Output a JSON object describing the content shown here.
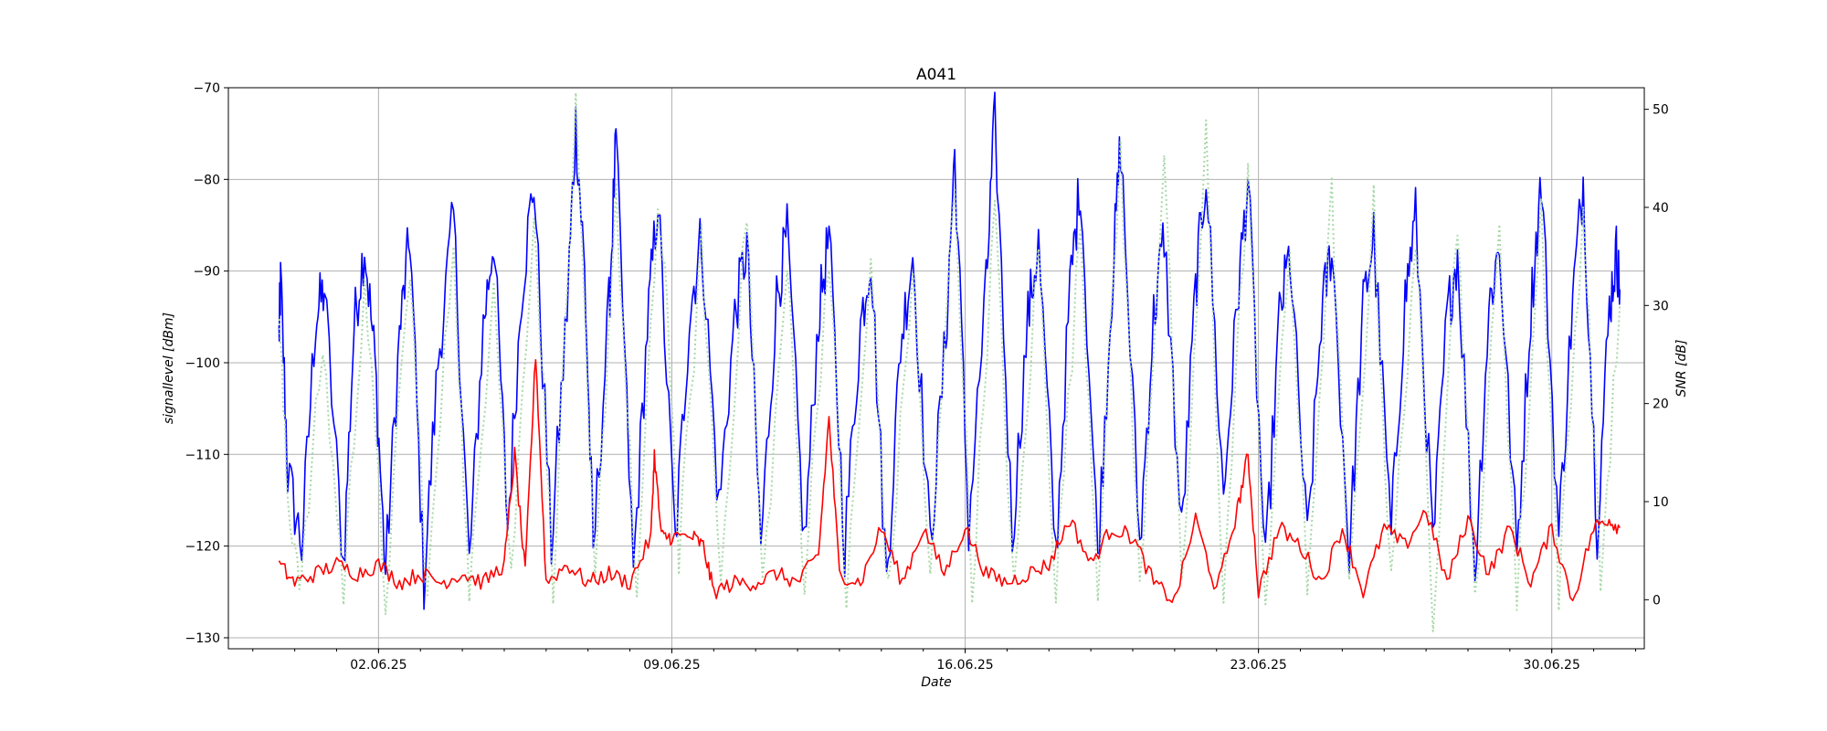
{
  "chart_data": {
    "type": "line",
    "title": "A041",
    "xlabel": "Date",
    "ylabel_left": "signallevel [dBm]",
    "ylabel_right": "SNR [dB]",
    "x_ticks": [
      "02.06.25",
      "09.06.25",
      "16.06.25",
      "23.06.25",
      "30.06.25"
    ],
    "y_left_ticks": [
      "−70",
      "−80",
      "−90",
      "−100",
      "−110",
      "−120",
      "−130"
    ],
    "y_right_ticks": [
      "50",
      "40",
      "30",
      "20",
      "10",
      "0"
    ],
    "x_range": [
      "2025-05-29T10:00",
      "2025-07-02T05:00"
    ],
    "y_left_range": [
      -131.2,
      -70
    ],
    "y_right_range": [
      -5,
      52.2
    ],
    "grid": true,
    "series": [
      {
        "axis": "left",
        "color": "#0000ff",
        "style": "solid",
        "points": [
          [
            "2025-05-30T15:00",
            -97
          ],
          [
            "2025-05-30T16:00",
            -91
          ],
          [
            "2025-05-30T20:00",
            -112
          ],
          [
            "2025-05-31T04:00",
            -120
          ],
          [
            "2025-05-31T12:00",
            -95
          ],
          [
            "2025-05-31T17:00",
            -92
          ],
          [
            "2025-06-01T04:00",
            -122
          ],
          [
            "2025-06-01T10:00",
            -96
          ],
          [
            "2025-06-01T16:00",
            -87
          ],
          [
            "2025-06-01T22:00",
            -100
          ],
          [
            "2025-06-02T04:00",
            -123
          ],
          [
            "2025-06-02T12:00",
            -97
          ],
          [
            "2025-06-02T18:00",
            -86
          ],
          [
            "2025-06-03T02:00",
            -124
          ],
          [
            "2025-06-03T10:00",
            -100
          ],
          [
            "2025-06-03T19:00",
            -84
          ],
          [
            "2025-06-04T04:00",
            -122
          ],
          [
            "2025-06-04T12:00",
            -96
          ],
          [
            "2025-06-04T18:00",
            -86
          ],
          [
            "2025-06-05T02:00",
            -118
          ],
          [
            "2025-06-05T10:00",
            -92
          ],
          [
            "2025-06-05T17:00",
            -80
          ],
          [
            "2025-06-06T03:00",
            -120
          ],
          [
            "2025-06-06T12:00",
            -94
          ],
          [
            "2025-06-06T17:00",
            -74
          ],
          [
            "2025-06-06T22:00",
            -90
          ],
          [
            "2025-06-07T03:00",
            -121
          ],
          [
            "2025-06-07T12:00",
            -94
          ],
          [
            "2025-06-07T16:00",
            -76
          ],
          [
            "2025-06-08T02:00",
            -123
          ],
          [
            "2025-06-08T10:00",
            -96
          ],
          [
            "2025-06-08T16:00",
            -82
          ],
          [
            "2025-06-09T02:00",
            -120
          ],
          [
            "2025-06-09T10:00",
            -95
          ],
          [
            "2025-06-09T17:00",
            -86
          ],
          [
            "2025-06-10T03:00",
            -116
          ],
          [
            "2025-06-10T12:00",
            -95
          ],
          [
            "2025-06-10T19:00",
            -87
          ],
          [
            "2025-06-11T03:00",
            -120
          ],
          [
            "2025-06-11T12:00",
            -93
          ],
          [
            "2025-06-11T18:00",
            -86
          ],
          [
            "2025-06-12T04:00",
            -120
          ],
          [
            "2025-06-12T12:00",
            -95
          ],
          [
            "2025-06-12T18:00",
            -86
          ],
          [
            "2025-06-13T03:00",
            -120
          ],
          [
            "2025-06-13T12:00",
            -96
          ],
          [
            "2025-06-13T18:00",
            -88
          ],
          [
            "2025-06-14T03:00",
            -124
          ],
          [
            "2025-06-14T11:00",
            -98
          ],
          [
            "2025-06-14T18:00",
            -88
          ],
          [
            "2025-06-15T04:00",
            -120
          ],
          [
            "2025-06-15T13:00",
            -97
          ],
          [
            "2025-06-15T18:00",
            -77
          ],
          [
            "2025-06-16T02:00",
            -118
          ],
          [
            "2025-06-16T12:00",
            -92
          ],
          [
            "2025-06-16T17:00",
            -73
          ],
          [
            "2025-06-17T03:00",
            -119
          ],
          [
            "2025-06-17T12:00",
            -95
          ],
          [
            "2025-06-17T18:00",
            -87
          ],
          [
            "2025-06-18T04:00",
            -121
          ],
          [
            "2025-06-18T12:00",
            -92
          ],
          [
            "2025-06-18T18:00",
            -80
          ],
          [
            "2025-06-19T04:00",
            -121
          ],
          [
            "2025-06-19T12:00",
            -92
          ],
          [
            "2025-06-19T17:00",
            -76
          ],
          [
            "2025-06-20T04:00",
            -120
          ],
          [
            "2025-06-20T12:00",
            -95
          ],
          [
            "2025-06-20T18:00",
            -86
          ],
          [
            "2025-06-21T04:00",
            -119
          ],
          [
            "2025-06-21T12:00",
            -92
          ],
          [
            "2025-06-21T18:00",
            -79
          ],
          [
            "2025-06-22T04:00",
            -115
          ],
          [
            "2025-06-22T12:00",
            -93
          ],
          [
            "2025-06-22T18:00",
            -80
          ],
          [
            "2025-06-23T04:00",
            -123
          ],
          [
            "2025-06-23T12:00",
            -95
          ],
          [
            "2025-06-23T18:00",
            -88
          ],
          [
            "2025-06-24T04:00",
            -120
          ],
          [
            "2025-06-24T12:00",
            -95
          ],
          [
            "2025-06-24T18:00",
            -87
          ],
          [
            "2025-06-25T04:00",
            -121
          ],
          [
            "2025-06-25T12:00",
            -94
          ],
          [
            "2025-06-25T18:00",
            -86
          ],
          [
            "2025-06-26T04:00",
            -119
          ],
          [
            "2025-06-26T12:00",
            -93
          ],
          [
            "2025-06-26T18:00",
            -84
          ],
          [
            "2025-06-27T04:00",
            -120
          ],
          [
            "2025-06-27T12:00",
            -95
          ],
          [
            "2025-06-27T18:00",
            -88
          ],
          [
            "2025-06-28T04:00",
            -123
          ],
          [
            "2025-06-28T12:00",
            -94
          ],
          [
            "2025-06-28T18:00",
            -87
          ],
          [
            "2025-06-29T04:00",
            -121
          ],
          [
            "2025-06-29T12:00",
            -94
          ],
          [
            "2025-06-29T18:00",
            -80
          ],
          [
            "2025-06-30T04:00",
            -119
          ],
          [
            "2025-06-30T12:00",
            -93
          ],
          [
            "2025-06-30T18:00",
            -80
          ],
          [
            "2025-07-01T02:00",
            -118
          ],
          [
            "2025-07-01T09:00",
            -94
          ],
          [
            "2025-07-01T13:00",
            -88
          ],
          [
            "2025-07-01T15:00",
            -92
          ]
        ]
      },
      {
        "axis": "right",
        "color": "#a8d8a8",
        "style": "dotted",
        "points": [
          [
            "2025-05-30T15:00",
            29
          ],
          [
            "2025-05-30T20:00",
            10
          ],
          [
            "2025-05-31T04:00",
            2
          ],
          [
            "2025-05-31T16:00",
            26
          ],
          [
            "2025-06-01T04:00",
            1
          ],
          [
            "2025-06-01T16:00",
            33
          ],
          [
            "2025-06-02T04:00",
            0
          ],
          [
            "2025-06-02T18:00",
            34
          ],
          [
            "2025-06-03T04:00",
            0
          ],
          [
            "2025-06-03T19:00",
            37
          ],
          [
            "2025-06-04T04:00",
            -1
          ],
          [
            "2025-06-04T18:00",
            34
          ],
          [
            "2025-06-05T04:00",
            2
          ],
          [
            "2025-06-05T17:00",
            40
          ],
          [
            "2025-06-06T04:00",
            2
          ],
          [
            "2025-06-06T17:00",
            50
          ],
          [
            "2025-06-07T04:00",
            1
          ],
          [
            "2025-06-07T16:00",
            42
          ],
          [
            "2025-06-08T04:00",
            0
          ],
          [
            "2025-06-08T16:00",
            40
          ],
          [
            "2025-06-08T22:00",
            28
          ],
          [
            "2025-06-09T04:00",
            4
          ],
          [
            "2025-06-09T17:00",
            36
          ],
          [
            "2025-06-10T04:00",
            2
          ],
          [
            "2025-06-10T19:00",
            40
          ],
          [
            "2025-06-11T04:00",
            1
          ],
          [
            "2025-06-11T18:00",
            34
          ],
          [
            "2025-06-12T04:00",
            2
          ],
          [
            "2025-06-12T18:00",
            36
          ],
          [
            "2025-06-13T04:00",
            0
          ],
          [
            "2025-06-13T18:00",
            34
          ],
          [
            "2025-06-14T04:00",
            0
          ],
          [
            "2025-06-14T18:00",
            34
          ],
          [
            "2025-06-15T04:00",
            1
          ],
          [
            "2025-06-15T18:00",
            43
          ],
          [
            "2025-06-16T04:00",
            1
          ],
          [
            "2025-06-16T17:00",
            40
          ],
          [
            "2025-06-17T04:00",
            0
          ],
          [
            "2025-06-17T18:00",
            36
          ],
          [
            "2025-06-18T04:00",
            1
          ],
          [
            "2025-06-18T18:00",
            38
          ],
          [
            "2025-06-19T04:00",
            2
          ],
          [
            "2025-06-19T17:00",
            46
          ],
          [
            "2025-06-20T04:00",
            1
          ],
          [
            "2025-06-20T18:00",
            46
          ],
          [
            "2025-06-21T04:00",
            0
          ],
          [
            "2025-06-21T18:00",
            47
          ],
          [
            "2025-06-22T04:00",
            0
          ],
          [
            "2025-06-22T18:00",
            44
          ],
          [
            "2025-06-23T04:00",
            0
          ],
          [
            "2025-06-23T18:00",
            36
          ],
          [
            "2025-06-24T04:00",
            1
          ],
          [
            "2025-06-24T18:00",
            41
          ],
          [
            "2025-06-25T04:00",
            0
          ],
          [
            "2025-06-25T18:00",
            40
          ],
          [
            "2025-06-26T04:00",
            1
          ],
          [
            "2025-06-26T18:00",
            37
          ],
          [
            "2025-06-27T04:00",
            -1
          ],
          [
            "2025-06-27T18:00",
            39
          ],
          [
            "2025-06-28T04:00",
            0
          ],
          [
            "2025-06-28T18:00",
            37
          ],
          [
            "2025-06-29T04:00",
            0
          ],
          [
            "2025-06-29T18:00",
            40
          ],
          [
            "2025-06-30T04:00",
            1
          ],
          [
            "2025-06-30T18:00",
            40
          ],
          [
            "2025-07-01T04:00",
            2
          ],
          [
            "2025-07-01T15:00",
            30
          ]
        ]
      },
      {
        "axis": "left",
        "color": "#ff0000",
        "style": "solid",
        "points": [
          [
            "2025-05-30T15:00",
            -122
          ],
          [
            "2025-05-31T00:00",
            -124
          ],
          [
            "2025-05-31T12:00",
            -123
          ],
          [
            "2025-06-01T00:00",
            -122
          ],
          [
            "2025-06-01T12:00",
            -123
          ],
          [
            "2025-06-02T00:00",
            -122
          ],
          [
            "2025-06-02T12:00",
            -124
          ],
          [
            "2025-06-03T00:00",
            -123
          ],
          [
            "2025-06-03T12:00",
            -124
          ],
          [
            "2025-06-04T00:00",
            -123
          ],
          [
            "2025-06-04T12:00",
            -124
          ],
          [
            "2025-06-05T00:00",
            -122
          ],
          [
            "2025-06-05T06:00",
            -110
          ],
          [
            "2025-06-05T12:00",
            -123
          ],
          [
            "2025-06-05T18:00",
            -99
          ],
          [
            "2025-06-06T00:00",
            -124
          ],
          [
            "2025-06-06T12:00",
            -122
          ],
          [
            "2025-06-07T00:00",
            -124
          ],
          [
            "2025-06-07T12:00",
            -123
          ],
          [
            "2025-06-08T00:00",
            -124
          ],
          [
            "2025-06-08T12:00",
            -119
          ],
          [
            "2025-06-08T14:00",
            -110
          ],
          [
            "2025-06-08T18:00",
            -119
          ],
          [
            "2025-06-09T00:00",
            -119
          ],
          [
            "2025-06-09T12:00",
            -119
          ],
          [
            "2025-06-09T18:00",
            -120
          ],
          [
            "2025-06-10T00:00",
            -125
          ],
          [
            "2025-06-10T12:00",
            -124
          ],
          [
            "2025-06-11T00:00",
            -124
          ],
          [
            "2025-06-11T12:00",
            -123
          ],
          [
            "2025-06-12T00:00",
            -124
          ],
          [
            "2025-06-12T12:00",
            -121
          ],
          [
            "2025-06-12T18:00",
            -106
          ],
          [
            "2025-06-13T00:00",
            -123
          ],
          [
            "2025-06-13T12:00",
            -124
          ],
          [
            "2025-06-14T00:00",
            -118
          ],
          [
            "2025-06-14T12:00",
            -124
          ],
          [
            "2025-06-15T00:00",
            -118
          ],
          [
            "2025-06-15T12:00",
            -123
          ],
          [
            "2025-06-16T00:00",
            -118
          ],
          [
            "2025-06-16T12:00",
            -123
          ],
          [
            "2025-06-17T00:00",
            -124
          ],
          [
            "2025-06-17T12:00",
            -123
          ],
          [
            "2025-06-18T00:00",
            -122
          ],
          [
            "2025-06-18T12:00",
            -117
          ],
          [
            "2025-06-19T00:00",
            -122
          ],
          [
            "2025-06-19T12:00",
            -118
          ],
          [
            "2025-06-20T00:00",
            -119
          ],
          [
            "2025-06-20T12:00",
            -124
          ],
          [
            "2025-06-21T00:00",
            -126
          ],
          [
            "2025-06-21T12:00",
            -117
          ],
          [
            "2025-06-22T00:00",
            -125
          ],
          [
            "2025-06-22T12:00",
            -116
          ],
          [
            "2025-06-22T18:00",
            -110
          ],
          [
            "2025-06-23T00:00",
            -125
          ],
          [
            "2025-06-23T12:00",
            -118
          ],
          [
            "2025-06-24T00:00",
            -120
          ],
          [
            "2025-06-24T12:00",
            -124
          ],
          [
            "2025-06-25T00:00",
            -118
          ],
          [
            "2025-06-25T12:00",
            -125
          ],
          [
            "2025-06-26T00:00",
            -118
          ],
          [
            "2025-06-26T12:00",
            -120
          ],
          [
            "2025-06-27T00:00",
            -116
          ],
          [
            "2025-06-27T12:00",
            -124
          ],
          [
            "2025-06-28T00:00",
            -117
          ],
          [
            "2025-06-28T12:00",
            -123
          ],
          [
            "2025-06-29T00:00",
            -118
          ],
          [
            "2025-06-29T12:00",
            -124
          ],
          [
            "2025-06-30T00:00",
            -118
          ],
          [
            "2025-06-30T12:00",
            -126
          ],
          [
            "2025-07-01T00:00",
            -118
          ],
          [
            "2025-07-01T08:00",
            -117
          ],
          [
            "2025-07-01T15:00",
            -118
          ]
        ]
      }
    ]
  }
}
